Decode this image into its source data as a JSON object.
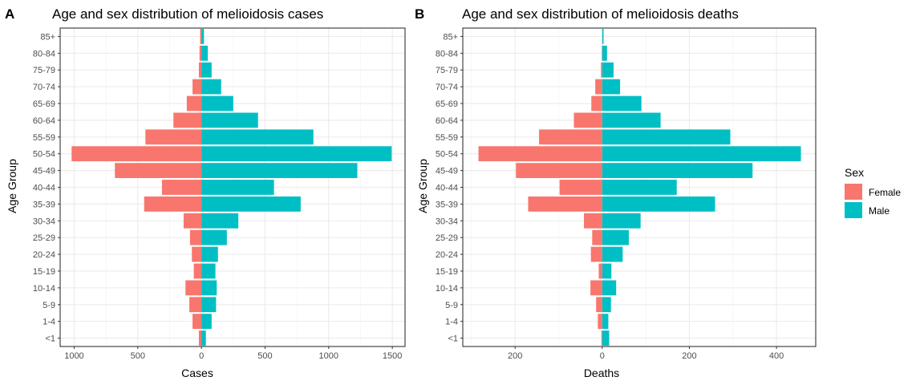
{
  "chart_data": [
    {
      "type": "bar",
      "orientation": "horizontal",
      "style": "population-pyramid",
      "panel_label": "A",
      "title": "Age and sex distribution of melioidosis cases",
      "xlabel": "Cases",
      "ylabel": "Age Group",
      "categories": [
        "<1",
        "1-4",
        "5-9",
        "10-14",
        "15-19",
        "20-24",
        "25-29",
        "30-34",
        "35-39",
        "40-44",
        "45-49",
        "50-54",
        "55-59",
        "60-64",
        "65-69",
        "70-74",
        "75-79",
        "80-84",
        "85+"
      ],
      "series": [
        {
          "name": "Female",
          "color": "#F8766D",
          "values": [
            20,
            70,
            95,
            125,
            60,
            75,
            90,
            140,
            450,
            310,
            680,
            1020,
            440,
            220,
            115,
            70,
            20,
            15,
            10
          ]
        },
        {
          "name": "Male",
          "color": "#00BFC4",
          "values": [
            35,
            80,
            115,
            120,
            110,
            130,
            200,
            290,
            780,
            570,
            1225,
            1495,
            880,
            445,
            250,
            155,
            80,
            50,
            20
          ]
        }
      ],
      "xlim": [
        -1110,
        1600
      ],
      "xticks": [
        -1000,
        -500,
        0,
        500,
        1000,
        1500
      ],
      "xtick_labels": [
        "1000",
        "500",
        "0",
        "500",
        "1000",
        "1500"
      ],
      "grid": true,
      "legend": "right"
    },
    {
      "type": "bar",
      "orientation": "horizontal",
      "style": "population-pyramid",
      "panel_label": "B",
      "title": "Age and sex distribution of melioidosis deaths",
      "xlabel": "Deaths",
      "ylabel": "Age Group",
      "categories": [
        "<1",
        "1-4",
        "5-9",
        "10-14",
        "15-19",
        "20-24",
        "25-29",
        "30-34",
        "35-39",
        "40-44",
        "45-49",
        "50-54",
        "55-59",
        "60-64",
        "65-69",
        "70-74",
        "75-79",
        "80-84",
        "85+"
      ],
      "series": [
        {
          "name": "Female",
          "color": "#F8766D",
          "values": [
            2,
            10,
            14,
            27,
            8,
            26,
            23,
            42,
            170,
            98,
            198,
            284,
            145,
            65,
            25,
            16,
            3,
            1,
            0
          ]
        },
        {
          "name": "Male",
          "color": "#00BFC4",
          "values": [
            16,
            14,
            20,
            32,
            21,
            47,
            61,
            88,
            259,
            171,
            345,
            456,
            294,
            134,
            90,
            41,
            26,
            11,
            3
          ]
        }
      ],
      "xlim": [
        -320,
        490
      ],
      "xticks": [
        -200,
        0,
        200,
        400
      ],
      "xtick_labels": [
        "200",
        "0",
        "200",
        "400"
      ],
      "grid": true,
      "legend": "right"
    }
  ],
  "legend": {
    "title": "Sex",
    "items": [
      {
        "label": "Female",
        "color": "#F8766D"
      },
      {
        "label": "Male",
        "color": "#00BFC4"
      }
    ]
  }
}
